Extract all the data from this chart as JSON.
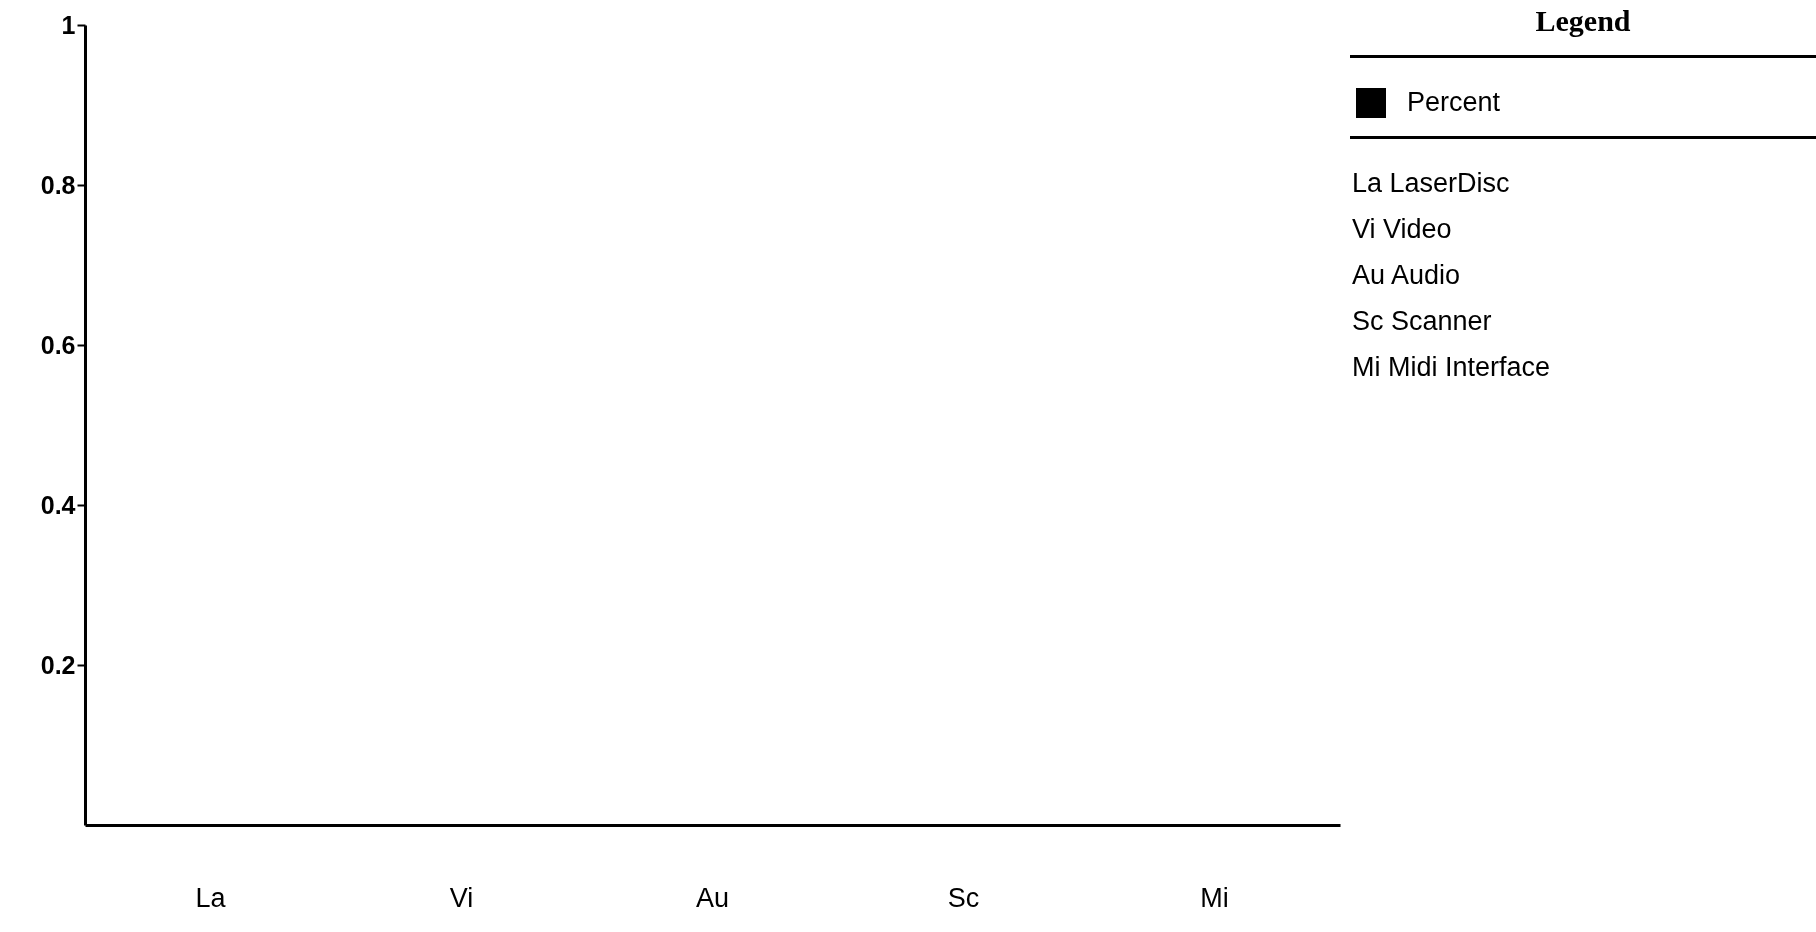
{
  "chart_data": {
    "type": "bar",
    "categories": [
      "La",
      "Vi",
      "Au",
      "Sc",
      "Mi"
    ],
    "series": [
      {
        "name": "Percent",
        "color": "#000000",
        "values": [
          0,
          0,
          0,
          0,
          0
        ]
      }
    ],
    "ylim": [
      0,
      1
    ],
    "yticks": [
      0.2,
      0.4,
      0.6,
      0.8,
      1
    ],
    "grid": false,
    "legend": "top right",
    "legend_title": "Legend",
    "annotations": [
      "La LaserDisc",
      "Vi Video",
      "Au Audio",
      "Sc Scanner",
      "Mi Midi Interface"
    ]
  }
}
